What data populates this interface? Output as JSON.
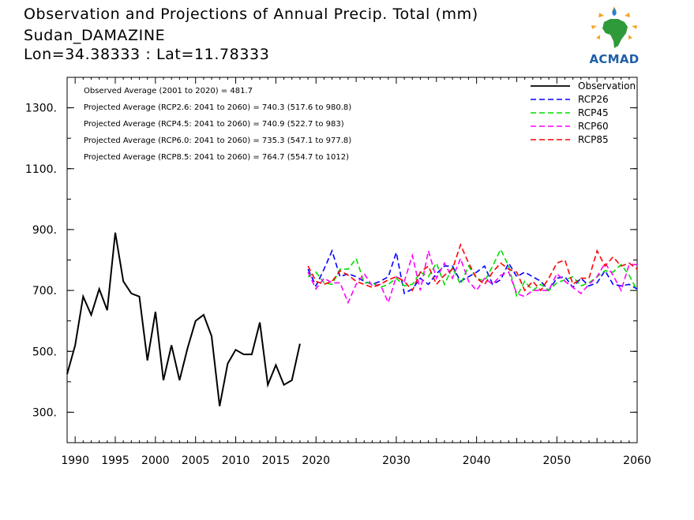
{
  "header": {
    "title": "Observation and Projections of Annual Precip. Total (mm)",
    "station": "Sudan_DAMAZINE",
    "coords": "Lon=34.38333 : Lat=11.78333"
  },
  "logo": {
    "text": "ACMAD",
    "icon": "africa-map-icon"
  },
  "colors": {
    "observation": "#000000",
    "rcp26": "#0000ff",
    "rcp45": "#00dd00",
    "rcp60": "#ff00ff",
    "rcp85": "#ff0000"
  },
  "chart_data": {
    "type": "line",
    "title": "Observation and Projections of Annual Precip. Total (mm)",
    "xlim": [
      1989,
      2060
    ],
    "ylim": [
      200,
      1400
    ],
    "x_ticks": [
      1990,
      1995,
      2000,
      2005,
      2010,
      2015,
      2020,
      2030,
      2040,
      2050,
      2060
    ],
    "y_ticks": [
      300,
      500,
      700,
      900,
      1100,
      1300
    ],
    "y_tick_labels": [
      "300.",
      "500.",
      "700.",
      "900.",
      "1100.",
      "1300."
    ],
    "annotations": [
      "Observed Average (2001 to 2020) = 481.7",
      "Projected Average (RCP2.6: 2041 to 2060) = 740.3 (517.6 to 980.8)",
      "Projected Average (RCP4.5: 2041 to 2060) = 740.9 (522.7 to 983)",
      "Projected Average (RCP6.0: 2041 to 2060) = 735.3 (547.1 to 977.8)",
      "Projected Average (RCP8.5: 2041 to 2060) = 764.7 (554.7 to 1012)"
    ],
    "legend_position": "top-right",
    "series": [
      {
        "name": "Observation",
        "dash": "solid",
        "color": "#000000",
        "x": [
          1989,
          1990,
          1991,
          1992,
          1993,
          1994,
          1995,
          1996,
          1997,
          1998,
          1999,
          2000,
          2001,
          2002,
          2003,
          2004,
          2005,
          2006,
          2007,
          2008,
          2009,
          2010,
          2011,
          2012,
          2013,
          2014,
          2015,
          2016,
          2017,
          2018,
          2019
        ],
        "values": [
          425,
          520,
          680,
          620,
          705,
          635,
          890,
          730,
          690,
          680,
          470,
          630,
          405,
          520,
          405,
          510,
          600,
          620,
          550,
          320,
          460,
          505,
          490,
          490,
          595,
          390,
          455,
          390,
          405,
          525,
          null
        ]
      },
      {
        "name": "RCP26",
        "dash": "dashed",
        "color": "#0000ff",
        "x": [
          2019,
          2020,
          2021,
          2022,
          2023,
          2024,
          2025,
          2026,
          2027,
          2028,
          2029,
          2030,
          2031,
          2032,
          2033,
          2034,
          2035,
          2036,
          2037,
          2038,
          2039,
          2040,
          2041,
          2042,
          2043,
          2044,
          2045,
          2046,
          2047,
          2048,
          2049,
          2050,
          2051,
          2052,
          2053,
          2054,
          2055,
          2056,
          2057,
          2058,
          2059,
          2060
        ],
        "values": [
          770,
          715,
          770,
          830,
          745,
          755,
          745,
          730,
          720,
          730,
          745,
          825,
          690,
          705,
          740,
          720,
          755,
          780,
          780,
          730,
          745,
          760,
          780,
          720,
          735,
          790,
          745,
          760,
          745,
          730,
          700,
          740,
          745,
          710,
          740,
          715,
          725,
          765,
          720,
          715,
          720,
          705
        ]
      },
      {
        "name": "RCP45",
        "dash": "dashed",
        "color": "#00dd00",
        "x": [
          2019,
          2020,
          2021,
          2022,
          2023,
          2024,
          2025,
          2026,
          2027,
          2028,
          2029,
          2030,
          2031,
          2032,
          2033,
          2034,
          2035,
          2036,
          2037,
          2038,
          2039,
          2040,
          2041,
          2042,
          2043,
          2044,
          2045,
          2046,
          2047,
          2048,
          2049,
          2050,
          2051,
          2052,
          2053,
          2054,
          2055,
          2056,
          2057,
          2058,
          2059,
          2060
        ],
        "values": [
          745,
          760,
          725,
          720,
          770,
          770,
          805,
          725,
          725,
          710,
          720,
          740,
          715,
          720,
          760,
          745,
          790,
          720,
          775,
          720,
          780,
          740,
          730,
          780,
          835,
          780,
          680,
          730,
          700,
          720,
          700,
          725,
          735,
          745,
          715,
          725,
          745,
          765,
          760,
          785,
          750,
          700
        ]
      },
      {
        "name": "RCP60",
        "dash": "dashed",
        "color": "#ff00ff",
        "x": [
          2019,
          2020,
          2021,
          2022,
          2023,
          2024,
          2025,
          2026,
          2027,
          2028,
          2029,
          2030,
          2031,
          2032,
          2033,
          2034,
          2035,
          2036,
          2037,
          2038,
          2039,
          2040,
          2041,
          2042,
          2043,
          2044,
          2045,
          2046,
          2047,
          2048,
          2049,
          2050,
          2051,
          2052,
          2053,
          2054,
          2055,
          2056,
          2057,
          2058,
          2059,
          2060
        ],
        "values": [
          760,
          705,
          740,
          725,
          725,
          660,
          720,
          755,
          715,
          720,
          660,
          745,
          730,
          815,
          700,
          830,
          740,
          790,
          740,
          805,
          730,
          700,
          740,
          720,
          750,
          760,
          690,
          680,
          700,
          700,
          700,
          755,
          730,
          710,
          690,
          720,
          745,
          790,
          750,
          700,
          785,
          785
        ]
      },
      {
        "name": "RCP85",
        "dash": "dashed",
        "color": "#ff0000",
        "x": [
          2019,
          2020,
          2021,
          2022,
          2023,
          2024,
          2025,
          2026,
          2027,
          2028,
          2029,
          2030,
          2031,
          2032,
          2033,
          2034,
          2035,
          2036,
          2037,
          2038,
          2039,
          2040,
          2041,
          2042,
          2043,
          2044,
          2045,
          2046,
          2047,
          2048,
          2049,
          2050,
          2051,
          2052,
          2053,
          2054,
          2055,
          2056,
          2057,
          2058,
          2059,
          2060
        ],
        "values": [
          780,
          730,
          720,
          730,
          765,
          750,
          730,
          720,
          710,
          720,
          735,
          745,
          730,
          700,
          760,
          780,
          720,
          750,
          770,
          850,
          790,
          740,
          720,
          760,
          790,
          770,
          760,
          700,
          730,
          700,
          740,
          790,
          800,
          720,
          740,
          740,
          830,
          780,
          810,
          780,
          790,
          770
        ]
      }
    ]
  }
}
